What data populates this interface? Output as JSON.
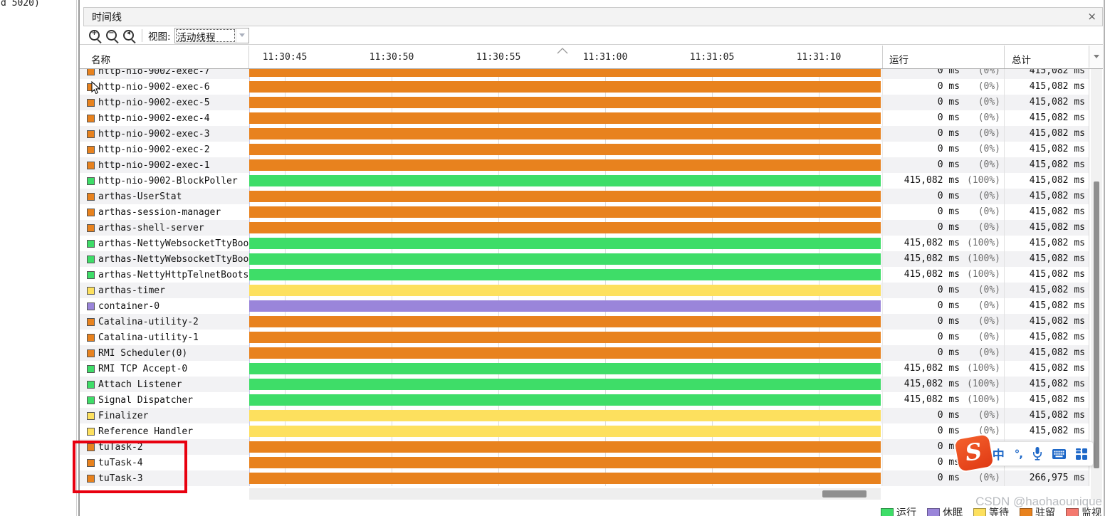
{
  "frame": {
    "outside_text": "d 5020)"
  },
  "panel": {
    "title": "时间线",
    "close": "×"
  },
  "toolbar": {
    "view_label": "视图:",
    "view_value": "活动线程"
  },
  "header": {
    "name": "名称",
    "running": "运行",
    "total": "总计"
  },
  "time_ticks": [
    "11:30:45",
    "11:30:50",
    "11:30:55",
    "11:31:00",
    "11:31:05",
    "11:31:10"
  ],
  "colors": {
    "orange": "#e8821e",
    "green": "#3edd68",
    "yellow": "#fde05e",
    "purple": "#9a85da"
  },
  "rows": [
    {
      "name": "http-nio-9002-exec-7",
      "state": "orange",
      "run": "0 ms",
      "pct": "(0%)",
      "total": "415,082 ms"
    },
    {
      "name": "http-nio-9002-exec-6",
      "state": "orange",
      "run": "0 ms",
      "pct": "(0%)",
      "total": "415,082 ms"
    },
    {
      "name": "http-nio-9002-exec-5",
      "state": "orange",
      "run": "0 ms",
      "pct": "(0%)",
      "total": "415,082 ms"
    },
    {
      "name": "http-nio-9002-exec-4",
      "state": "orange",
      "run": "0 ms",
      "pct": "(0%)",
      "total": "415,082 ms"
    },
    {
      "name": "http-nio-9002-exec-3",
      "state": "orange",
      "run": "0 ms",
      "pct": "(0%)",
      "total": "415,082 ms"
    },
    {
      "name": "http-nio-9002-exec-2",
      "state": "orange",
      "run": "0 ms",
      "pct": "(0%)",
      "total": "415,082 ms"
    },
    {
      "name": "http-nio-9002-exec-1",
      "state": "orange",
      "run": "0 ms",
      "pct": "(0%)",
      "total": "415,082 ms"
    },
    {
      "name": "http-nio-9002-BlockPoller",
      "state": "green",
      "run": "415,082 ms",
      "pct": "(100%)",
      "total": "415,082 ms"
    },
    {
      "name": "arthas-UserStat",
      "state": "orange",
      "run": "0 ms",
      "pct": "(0%)",
      "total": "415,082 ms"
    },
    {
      "name": "arthas-session-manager",
      "state": "orange",
      "run": "0 ms",
      "pct": "(0%)",
      "total": "415,082 ms"
    },
    {
      "name": "arthas-shell-server",
      "state": "orange",
      "run": "0 ms",
      "pct": "(0%)",
      "total": "415,082 ms"
    },
    {
      "name": "arthas-NettyWebsocketTtyBoo",
      "state": "green",
      "run": "415,082 ms",
      "pct": "(100%)",
      "total": "415,082 ms"
    },
    {
      "name": "arthas-NettyWebsocketTtyBoo",
      "state": "green",
      "run": "415,082 ms",
      "pct": "(100%)",
      "total": "415,082 ms"
    },
    {
      "name": "arthas-NettyHttpTelnetBoots",
      "state": "green",
      "run": "415,082 ms",
      "pct": "(100%)",
      "total": "415,082 ms"
    },
    {
      "name": "arthas-timer",
      "state": "yellow",
      "run": "0 ms",
      "pct": "(0%)",
      "total": "415,082 ms"
    },
    {
      "name": "container-0",
      "state": "purple",
      "run": "0 ms",
      "pct": "(0%)",
      "total": "415,082 ms"
    },
    {
      "name": "Catalina-utility-2",
      "state": "orange",
      "run": "0 ms",
      "pct": "(0%)",
      "total": "415,082 ms"
    },
    {
      "name": "Catalina-utility-1",
      "state": "orange",
      "run": "0 ms",
      "pct": "(0%)",
      "total": "415,082 ms"
    },
    {
      "name": "RMI Scheduler(0)",
      "state": "orange",
      "run": "0 ms",
      "pct": "(0%)",
      "total": "415,082 ms"
    },
    {
      "name": "RMI TCP Accept-0",
      "state": "green",
      "run": "415,082 ms",
      "pct": "(100%)",
      "total": "415,082 ms"
    },
    {
      "name": "Attach Listener",
      "state": "green",
      "run": "415,082 ms",
      "pct": "(100%)",
      "total": "415,082 ms"
    },
    {
      "name": "Signal Dispatcher",
      "state": "green",
      "run": "415,082 ms",
      "pct": "(100%)",
      "total": "415,082 ms"
    },
    {
      "name": "Finalizer",
      "state": "yellow",
      "run": "0 ms",
      "pct": "(0%)",
      "total": "415,082 ms"
    },
    {
      "name": "Reference Handler",
      "state": "yellow",
      "run": "0 ms",
      "pct": "(0%)",
      "total": "415,082 ms"
    },
    {
      "name": "tuTask-2",
      "state": "orange",
      "run": "0 ms",
      "pct": "(0%)",
      "total": "266,975 ms"
    },
    {
      "name": "tuTask-4",
      "state": "orange",
      "run": "0 ms",
      "pct": "(0%)",
      "total": "266,975 ms"
    },
    {
      "name": "tuTask-3",
      "state": "orange",
      "run": "0 ms",
      "pct": "(0%)",
      "total": "266,975 ms"
    }
  ],
  "legend": [
    {
      "label": "运行",
      "color": "#3edd68"
    },
    {
      "label": "休眠",
      "color": "#9a85da"
    },
    {
      "label": "等待",
      "color": "#fde05e"
    },
    {
      "label": "驻留",
      "color": "#e8821e"
    },
    {
      "label": "监视",
      "color": "#f4796f"
    }
  ],
  "watermark": "CSDN @haohaounique",
  "ime": {
    "logo": "S",
    "mode": "中",
    "punct": "°,"
  }
}
